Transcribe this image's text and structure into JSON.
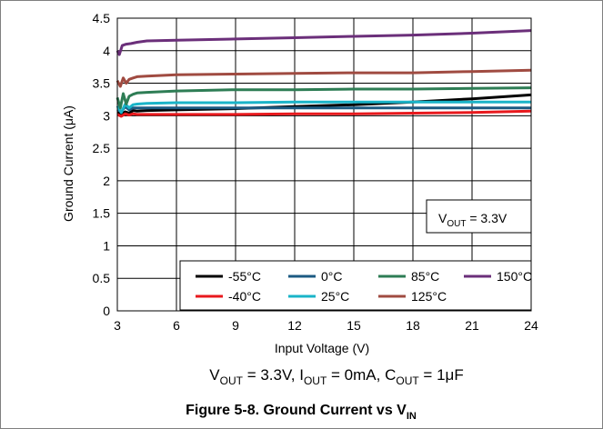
{
  "chart_data": {
    "type": "line",
    "xlabel": "Input Voltage (V)",
    "ylabel": "Ground Current (μA)",
    "xlim": [
      3,
      24
    ],
    "ylim": [
      0,
      4.5
    ],
    "xticks": [
      3,
      6,
      9,
      12,
      15,
      18,
      21,
      24
    ],
    "yticks": [
      0,
      0.5,
      1,
      1.5,
      2,
      2.5,
      3,
      3.5,
      4,
      4.5
    ],
    "grid": true,
    "legend_position": "bottom-right",
    "annotation": {
      "prefix": "V",
      "sub": "OUT",
      "suffix": " = 3.3V"
    },
    "series": [
      {
        "name": "-55°C",
        "color": "#000000",
        "x": [
          3,
          3.2,
          3.4,
          3.6,
          3.8,
          4,
          4.5,
          6,
          9,
          12,
          15,
          18,
          21,
          24
        ],
        "y": [
          3.05,
          3.02,
          3.06,
          3.04,
          3.08,
          3.07,
          3.08,
          3.09,
          3.11,
          3.14,
          3.17,
          3.21,
          3.26,
          3.32
        ]
      },
      {
        "name": "-40°C",
        "color": "#e8191d",
        "x": [
          3,
          3.2,
          3.4,
          3.6,
          3.8,
          4,
          4.5,
          6,
          9,
          12,
          15,
          18,
          21,
          24
        ],
        "y": [
          3.02,
          2.99,
          3.03,
          3.01,
          3.03,
          3.02,
          3.02,
          3.02,
          3.02,
          3.03,
          3.03,
          3.04,
          3.05,
          3.07
        ]
      },
      {
        "name": "0°C",
        "color": "#1c5a82",
        "x": [
          3,
          3.2,
          3.4,
          3.6,
          3.8,
          4,
          4.5,
          6,
          9,
          12,
          15,
          18,
          21,
          24
        ],
        "y": [
          3.1,
          3.06,
          3.14,
          3.09,
          3.12,
          3.12,
          3.12,
          3.12,
          3.12,
          3.12,
          3.12,
          3.12,
          3.12,
          3.12
        ]
      },
      {
        "name": "25°C",
        "color": "#1ab4c8",
        "x": [
          3,
          3.2,
          3.4,
          3.6,
          3.8,
          4,
          4.5,
          6,
          9,
          12,
          15,
          18,
          21,
          24
        ],
        "y": [
          3.15,
          3.05,
          3.18,
          3.12,
          3.17,
          3.18,
          3.19,
          3.2,
          3.2,
          3.21,
          3.21,
          3.21,
          3.21,
          3.21
        ]
      },
      {
        "name": "85°C",
        "color": "#2e7d55",
        "x": [
          3,
          3.15,
          3.3,
          3.45,
          3.6,
          3.8,
          4,
          4.5,
          6,
          9,
          12,
          15,
          18,
          21,
          24
        ],
        "y": [
          3.28,
          3.12,
          3.34,
          3.18,
          3.3,
          3.33,
          3.35,
          3.36,
          3.38,
          3.4,
          3.4,
          3.41,
          3.41,
          3.42,
          3.43
        ]
      },
      {
        "name": "125°C",
        "color": "#a04b41",
        "x": [
          3,
          3.15,
          3.3,
          3.45,
          3.6,
          3.8,
          4,
          4.5,
          6,
          9,
          12,
          15,
          18,
          21,
          24
        ],
        "y": [
          3.54,
          3.45,
          3.58,
          3.5,
          3.56,
          3.58,
          3.6,
          3.61,
          3.63,
          3.64,
          3.65,
          3.66,
          3.66,
          3.68,
          3.7
        ]
      },
      {
        "name": "150°C",
        "color": "#6b2f7a",
        "x": [
          3,
          3.1,
          3.25,
          3.45,
          3.7,
          4,
          4.5,
          6,
          9,
          12,
          15,
          18,
          21,
          24
        ],
        "y": [
          4.0,
          3.94,
          4.08,
          4.1,
          4.11,
          4.13,
          4.15,
          4.16,
          4.18,
          4.2,
          4.22,
          4.24,
          4.27,
          4.31
        ]
      }
    ]
  },
  "conditions": {
    "v_out": "3.3V",
    "i_out": "0mA",
    "c_out": "1μF"
  },
  "caption": {
    "prefix": "Figure 5-8. Ground Current vs V",
    "sub": "IN"
  }
}
